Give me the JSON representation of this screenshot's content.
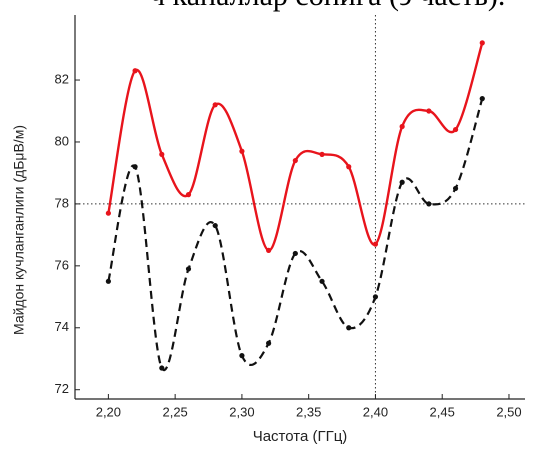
{
  "chart_data": {
    "type": "line",
    "caption_fragment": "ч каналлар сонига (э часть).",
    "xlabel": "Частота (ГГц)",
    "ylabel": "Майдон кучланганлиги (дБμВ/м)",
    "x": [
      2.2,
      2.22,
      2.24,
      2.26,
      2.28,
      2.3,
      2.32,
      2.34,
      2.36,
      2.38,
      2.4,
      2.42,
      2.44,
      2.46,
      2.48
    ],
    "series": [
      {
        "color": "#e8141c",
        "dash": "solid",
        "values": [
          77.7,
          82.3,
          79.6,
          78.3,
          81.2,
          79.7,
          76.5,
          79.4,
          79.6,
          79.2,
          76.7,
          80.5,
          81.0,
          80.4,
          83.2
        ]
      },
      {
        "color": "#111111",
        "dash": "dashed",
        "values": [
          75.5,
          79.2,
          72.7,
          75.9,
          77.3,
          73.1,
          73.5,
          76.4,
          75.5,
          74.0,
          75.0,
          78.7,
          78.0,
          78.5,
          81.4
        ]
      }
    ],
    "xlim": [
      2.175,
      2.512
    ],
    "ylim": [
      71.7,
      84.1
    ],
    "xticks": [
      {
        "value": 2.2,
        "label": "2,20"
      },
      {
        "value": 2.25,
        "label": "2,25"
      },
      {
        "value": 2.3,
        "label": "2,30"
      },
      {
        "value": 2.35,
        "label": "2,35"
      },
      {
        "value": 2.4,
        "label": "2,40"
      },
      {
        "value": 2.45,
        "label": "2,45"
      },
      {
        "value": 2.5,
        "label": "2,50"
      }
    ],
    "yticks": [
      72,
      74,
      76,
      78,
      80,
      82
    ],
    "reference_lines": {
      "x": 2.4,
      "y": 78
    }
  }
}
